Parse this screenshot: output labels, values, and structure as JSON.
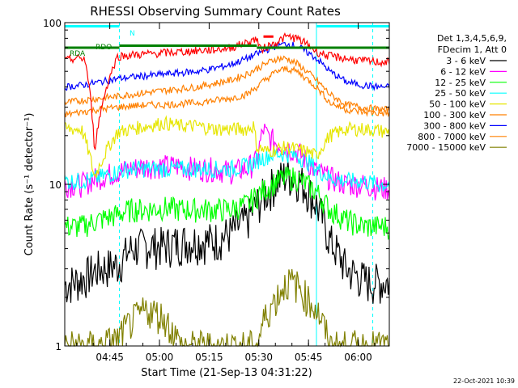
{
  "chart_data": {
    "type": "line",
    "title": "RHESSI Observing Summary Count Rates",
    "xlabel": "Start Time (21-Sep-13 04:31:22)",
    "ylabel": "Count Rate (s⁻¹ detector⁻¹)",
    "ylog": true,
    "ylim": [
      1,
      100
    ],
    "xlim_minutes_after_start": [
      0,
      98
    ],
    "y_tick_labels": [
      "1",
      "10",
      "100"
    ],
    "x_tick_labels": [
      "04:45",
      "05:00",
      "05:15",
      "05:30",
      "05:45",
      "06:00"
    ],
    "x_tick_minutes": [
      13.6,
      28.6,
      43.6,
      58.6,
      73.6,
      88.6
    ],
    "legend_header": [
      "Det 1,3,4,5,6,9,",
      "FDecim 1, Att 0"
    ],
    "series": [
      {
        "name": "3 - 6 keV",
        "color": "#000000",
        "x": [
          0,
          5,
          10,
          16,
          20,
          25,
          30,
          35,
          40,
          45,
          50,
          55,
          58,
          61,
          64,
          67,
          70,
          73,
          76,
          80,
          85,
          90,
          92,
          95,
          98
        ],
        "y": [
          2.4,
          2.6,
          3.0,
          3.2,
          4.0,
          4.2,
          4.2,
          4.4,
          4.5,
          4.5,
          5.0,
          6.0,
          7.5,
          9.0,
          10.5,
          11.5,
          11.0,
          9.5,
          7.5,
          4.5,
          3.0,
          2.6,
          2.5,
          2.5,
          2.5
        ]
      },
      {
        "name": "6 - 12 keV",
        "color": "#ff00ff",
        "x": [
          0,
          5,
          10,
          16,
          20,
          25,
          30,
          35,
          40,
          45,
          50,
          55,
          58,
          60,
          61,
          64,
          67,
          70,
          73,
          76,
          80,
          85,
          90,
          95,
          98
        ],
        "y": [
          10,
          10,
          11,
          12,
          12.5,
          13,
          13,
          13,
          12.5,
          12.5,
          12,
          12.5,
          14,
          22,
          20,
          18,
          17,
          16,
          14,
          12,
          11,
          10,
          10,
          9.5,
          9.5
        ]
      },
      {
        "name": "12 - 25 keV",
        "color": "#00ff00",
        "x": [
          0,
          5,
          10,
          16,
          20,
          25,
          30,
          35,
          40,
          45,
          50,
          55,
          58,
          61,
          64,
          67,
          70,
          73,
          76,
          80,
          85,
          90,
          95,
          98
        ],
        "y": [
          5.5,
          5.5,
          6.0,
          6.5,
          7.0,
          7.0,
          7.2,
          7.0,
          7.0,
          7.0,
          7.0,
          7.5,
          8.5,
          9.5,
          10.5,
          11.0,
          11.0,
          10.0,
          9.0,
          7.0,
          6.0,
          5.5,
          5.5,
          5.5
        ]
      },
      {
        "name": "25 - 50 keV",
        "color": "#00ffff",
        "x": [
          0,
          5,
          10,
          16,
          20,
          25,
          30,
          35,
          40,
          45,
          50,
          55,
          58,
          61,
          64,
          67,
          70,
          73,
          76,
          80,
          85,
          90,
          95,
          98
        ],
        "y": [
          10.5,
          10.5,
          11,
          12,
          12.5,
          12.5,
          12.5,
          12.5,
          12.5,
          12.5,
          12.5,
          13,
          14,
          15,
          15.5,
          15.5,
          15,
          14,
          12.5,
          11,
          10.5,
          10.5,
          10,
          10
        ]
      },
      {
        "name": "50 - 100 keV",
        "color": "#e6e600",
        "x": [
          0,
          5,
          9,
          16,
          20,
          25,
          30,
          35,
          40,
          45,
          50,
          55,
          57,
          58,
          61,
          64,
          67,
          70,
          73,
          76,
          80,
          85,
          90,
          95,
          98
        ],
        "y": [
          22,
          22,
          11,
          21,
          22,
          23,
          24,
          23,
          23,
          22,
          22,
          22,
          23,
          17,
          16,
          16.5,
          17,
          16.5,
          16,
          15,
          20,
          22,
          22,
          21.5,
          21
        ]
      },
      {
        "name": "100 - 300 keV",
        "color": "#ff8000",
        "x": [
          0,
          5,
          10,
          16,
          20,
          25,
          30,
          35,
          40,
          45,
          50,
          55,
          58,
          61,
          64,
          67,
          70,
          73,
          76,
          80,
          85,
          90,
          95,
          98
        ],
        "y": [
          32,
          33,
          34,
          35,
          36,
          37,
          38,
          39,
          40,
          42,
          44,
          48,
          52,
          56,
          60,
          60,
          56,
          50,
          44,
          36,
          31,
          30,
          29,
          29
        ]
      },
      {
        "name": "300 - 800 keV",
        "color": "#0000ff",
        "x": [
          0,
          5,
          8,
          16,
          20,
          25,
          30,
          35,
          40,
          45,
          50,
          55,
          58,
          61,
          64,
          67,
          70,
          73,
          76,
          80,
          85,
          90,
          95,
          98
        ],
        "y": [
          40,
          41,
          42,
          45,
          46,
          47,
          48,
          49,
          50,
          52,
          55,
          60,
          64,
          68,
          72,
          74,
          72,
          66,
          60,
          50,
          43,
          41,
          40,
          40
        ]
      },
      {
        "name": "800 - 7000 keV",
        "color": "#ff8000",
        "x": [
          0,
          5,
          10,
          16,
          20,
          25,
          30,
          35,
          40,
          45,
          50,
          55,
          58,
          61,
          64,
          67,
          70,
          73,
          76,
          80,
          85,
          90,
          95,
          98
        ],
        "y": [
          27,
          28,
          29,
          30,
          30.5,
          31,
          31,
          31.5,
          32,
          33,
          34,
          36,
          40,
          45,
          50,
          52,
          50,
          45,
          40,
          32,
          29,
          28,
          27.5,
          27.5
        ]
      },
      {
        "name": "7000 - 15000 keV",
        "color": "#808000",
        "x": [
          0,
          5,
          10,
          16,
          20,
          25,
          30,
          35,
          40,
          45,
          50,
          55,
          58,
          61,
          64,
          67,
          70,
          73,
          76,
          80,
          85,
          90,
          95,
          98
        ],
        "y": [
          1.0,
          1.0,
          1.0,
          1.1,
          1.4,
          1.7,
          1.5,
          1.0,
          1.0,
          1.0,
          1.0,
          1.0,
          1.0,
          1.6,
          2.0,
          2.5,
          2.4,
          2.0,
          1.7,
          1.0,
          1.0,
          1.0,
          1.0,
          1.0
        ]
      }
    ],
    "top_series": {
      "name": "",
      "color": "#ff0000",
      "x": [
        0,
        3,
        6,
        9,
        16,
        20,
        25,
        30,
        35,
        40,
        45,
        50,
        55,
        58,
        59,
        63,
        67,
        70,
        73,
        76,
        80,
        85,
        90,
        95,
        98
      ],
      "y": [
        58,
        60,
        60,
        16,
        62,
        63,
        64,
        65,
        66,
        67,
        68,
        70,
        75,
        80,
        68,
        74,
        82,
        80,
        74,
        66,
        62,
        60,
        58,
        57,
        57
      ]
    },
    "state_bars": [
      {
        "label": "N",
        "color": "#00ffff",
        "segments": [
          [
            0,
            16.5
          ],
          [
            76,
            98
          ]
        ],
        "level": 95
      },
      {
        "label": "RDO",
        "color": "#008000",
        "segments": [
          [
            16.5,
            58
          ]
        ],
        "level": 72
      },
      {
        "label": "RDA",
        "color": "#008000",
        "segments": [
          [
            0,
            16.5
          ],
          [
            58,
            98
          ]
        ],
        "level": 70
      }
    ],
    "red_marker": {
      "x": [
        60,
        63
      ],
      "y": 82
    },
    "vertical_lines": {
      "solid": [
        0,
        76
      ],
      "dashed": [
        16.5,
        93
      ],
      "color": "#00ffff"
    },
    "footer_timestamp": "22-Oct-2021 10:39"
  }
}
